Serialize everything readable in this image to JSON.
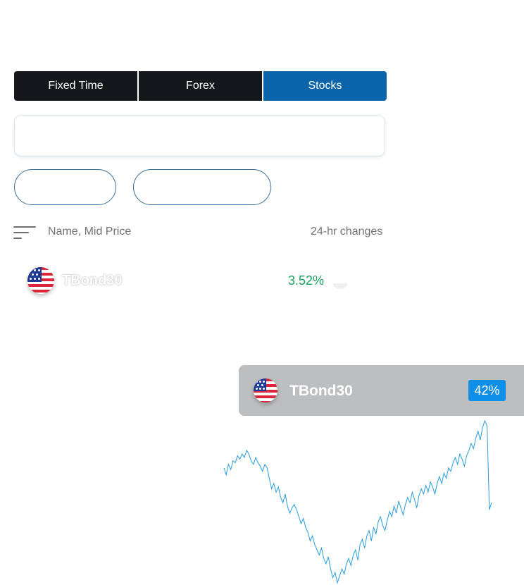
{
  "tabs": [
    {
      "label": "Fixed Time",
      "active": false
    },
    {
      "label": "Forex",
      "active": false
    },
    {
      "label": "Stocks",
      "active": true
    }
  ],
  "search": {
    "value": ""
  },
  "filters": [
    {
      "label": ""
    },
    {
      "label": ""
    }
  ],
  "list_header": {
    "name_col": "Name, Mid Price",
    "change_col": "24-hr changes"
  },
  "rows": [
    {
      "icon": "us-flag-icon",
      "name": "TBond30",
      "change": "3.52%",
      "change_color": "#19a35a"
    }
  ],
  "drag_card": {
    "icon": "us-flag-icon",
    "name": "TBond30",
    "badge": "42%",
    "badge_color": "#0f8fe8"
  },
  "chart_data": {
    "type": "line",
    "title": "",
    "xlabel": "",
    "ylabel": "",
    "color": "#2a9be0",
    "grid": false,
    "values": [
      72,
      68,
      74,
      71,
      76,
      75,
      79,
      77,
      80,
      78,
      82,
      80,
      76,
      74,
      78,
      75,
      73,
      70,
      74,
      72,
      66,
      60,
      63,
      58,
      61,
      55,
      52,
      57,
      50,
      46,
      49,
      51,
      48,
      44,
      40,
      43,
      38,
      35,
      30,
      33,
      28,
      25,
      22,
      26,
      20,
      17,
      21,
      14,
      9,
      12,
      6,
      10,
      14,
      11,
      17,
      20,
      16,
      22,
      25,
      19,
      28,
      31,
      26,
      33,
      36,
      30,
      38,
      34,
      41,
      44,
      39,
      36,
      42,
      47,
      44,
      50,
      46,
      53,
      49,
      45,
      51,
      55,
      52,
      58,
      54,
      49,
      56,
      60,
      57,
      62,
      58,
      64,
      61,
      57,
      63,
      67,
      63,
      69,
      66,
      72,
      70,
      75,
      78,
      74,
      80,
      77,
      73,
      79,
      82,
      86,
      83,
      89,
      93,
      88,
      95,
      99,
      96,
      48,
      52
    ]
  }
}
